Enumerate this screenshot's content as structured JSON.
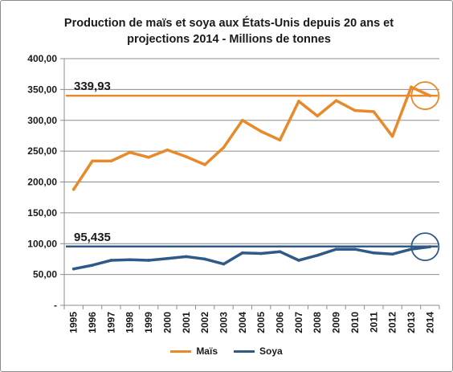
{
  "chart_data": {
    "type": "line",
    "title": "Production de maïs et soya aux États-Unis depuis 20 ans et projections 2014 - Millions de tonnes",
    "title_lines": [
      "Production de maïs et soya aux États-Unis depuis 20 ans et",
      "projections 2014 - Millions de tonnes"
    ],
    "xlabel": "",
    "ylabel": "",
    "x": [
      "1995",
      "1996",
      "1997",
      "1998",
      "1999",
      "2000",
      "2001",
      "2002",
      "2003",
      "2004",
      "2005",
      "2006",
      "2007",
      "2008",
      "2009",
      "2010",
      "2011",
      "2012",
      "2013",
      "2014"
    ],
    "ylim": [
      0,
      400
    ],
    "y_ticks": [
      0,
      50,
      100,
      150,
      200,
      250,
      300,
      350,
      400
    ],
    "y_tick_labels": [
      "-",
      "50,00",
      "100,00",
      "150,00",
      "200,00",
      "250,00",
      "300,00",
      "350,00",
      "400,00"
    ],
    "grid": "horizontal",
    "legend_position": "bottom",
    "series": [
      {
        "name": "Maïs",
        "color": "#e8892a",
        "values": [
          188,
          234,
          234,
          248,
          240,
          252,
          241,
          228,
          256,
          300,
          282,
          268,
          331,
          307,
          332,
          316,
          314,
          274,
          354,
          340
        ]
      },
      {
        "name": "Soya",
        "color": "#2f5a85",
        "values": [
          59,
          65,
          73,
          74,
          73,
          76,
          79,
          75,
          67,
          85,
          84,
          87,
          73,
          81,
          91,
          91,
          85,
          83,
          91,
          95
        ]
      }
    ],
    "reference_lines": [
      {
        "value": 339.93,
        "label": "339,93",
        "color": "#e8892a"
      },
      {
        "value": 95.435,
        "label": "95,435",
        "color": "#2f5a85"
      }
    ]
  }
}
